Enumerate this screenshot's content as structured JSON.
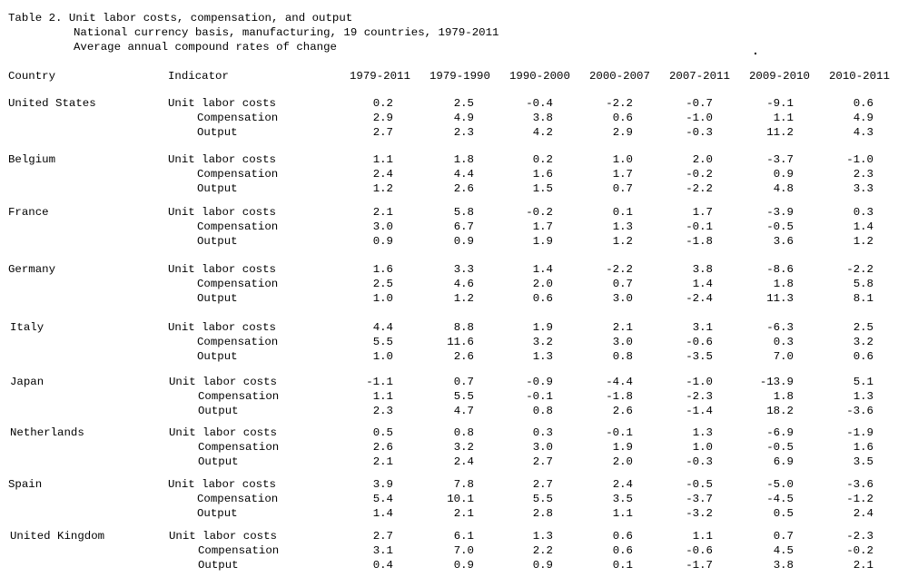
{
  "title": {
    "line1": "Table 2. Unit labor costs, compensation, and output",
    "line2": "National currency basis, manufacturing, 19 countries, 1979-2011",
    "line3": "Average annual compound rates of change"
  },
  "headers": {
    "country": "Country",
    "indicator": "Indicator",
    "periods": [
      "1979-2011",
      "1979-1990",
      "1990-2000",
      "2000-2007",
      "2007-2011",
      "2009-2010",
      "2010-2011"
    ]
  },
  "indicators": [
    "Unit labor costs",
    "Compensation",
    "Output"
  ],
  "rows": [
    {
      "country": "United States",
      "values": [
        [
          "0.2",
          "2.5",
          "-0.4",
          "-2.2",
          "-0.7",
          "-9.1",
          "0.6"
        ],
        [
          "2.9",
          "4.9",
          "3.8",
          "0.6",
          "-1.0",
          "1.1",
          "4.9"
        ],
        [
          "2.7",
          "2.3",
          "4.2",
          "2.9",
          "-0.3",
          "11.2",
          "4.3"
        ]
      ]
    },
    {
      "country": "Belgium",
      "values": [
        [
          "1.1",
          "1.8",
          "0.2",
          "1.0",
          "2.0",
          "-3.7",
          "-1.0"
        ],
        [
          "2.4",
          "4.4",
          "1.6",
          "1.7",
          "-0.2",
          "0.9",
          "2.3"
        ],
        [
          "1.2",
          "2.6",
          "1.5",
          "0.7",
          "-2.2",
          "4.8",
          "3.3"
        ]
      ]
    },
    {
      "country": "France",
      "values": [
        [
          "2.1",
          "5.8",
          "-0.2",
          "0.1",
          "1.7",
          "-3.9",
          "0.3"
        ],
        [
          "3.0",
          "6.7",
          "1.7",
          "1.3",
          "-0.1",
          "-0.5",
          "1.4"
        ],
        [
          "0.9",
          "0.9",
          "1.9",
          "1.2",
          "-1.8",
          "3.6",
          "1.2"
        ]
      ]
    },
    {
      "country": "Germany",
      "values": [
        [
          "1.6",
          "3.3",
          "1.4",
          "-2.2",
          "3.8",
          "-8.6",
          "-2.2"
        ],
        [
          "2.5",
          "4.6",
          "2.0",
          "0.7",
          "1.4",
          "1.8",
          "5.8"
        ],
        [
          "1.0",
          "1.2",
          "0.6",
          "3.0",
          "-2.4",
          "11.3",
          "8.1"
        ]
      ]
    },
    {
      "country": "Italy",
      "values": [
        [
          "4.4",
          "8.8",
          "1.9",
          "2.1",
          "3.1",
          "-6.3",
          "2.5"
        ],
        [
          "5.5",
          "11.6",
          "3.2",
          "3.0",
          "-0.6",
          "0.3",
          "3.2"
        ],
        [
          "1.0",
          "2.6",
          "1.3",
          "0.8",
          "-3.5",
          "7.0",
          "0.6"
        ]
      ]
    },
    {
      "country": "Japan",
      "values": [
        [
          "-1.1",
          "0.7",
          "-0.9",
          "-4.4",
          "-1.0",
          "-13.9",
          "5.1"
        ],
        [
          "1.1",
          "5.5",
          "-0.1",
          "-1.8",
          "-2.3",
          "1.8",
          "1.3"
        ],
        [
          "2.3",
          "4.7",
          "0.8",
          "2.6",
          "-1.4",
          "18.2",
          "-3.6"
        ]
      ]
    },
    {
      "country": "Netherlands",
      "values": [
        [
          "0.5",
          "0.8",
          "0.3",
          "-0.1",
          "1.3",
          "-6.9",
          "-1.9"
        ],
        [
          "2.6",
          "3.2",
          "3.0",
          "1.9",
          "1.0",
          "-0.5",
          "1.6"
        ],
        [
          "2.1",
          "2.4",
          "2.7",
          "2.0",
          "-0.3",
          "6.9",
          "3.5"
        ]
      ]
    },
    {
      "country": "Spain",
      "values": [
        [
          "3.9",
          "7.8",
          "2.7",
          "2.4",
          "-0.5",
          "-5.0",
          "-3.6"
        ],
        [
          "5.4",
          "10.1",
          "5.5",
          "3.5",
          "-3.7",
          "-4.5",
          "-1.2"
        ],
        [
          "1.4",
          "2.1",
          "2.8",
          "1.1",
          "-3.2",
          "0.5",
          "2.4"
        ]
      ]
    },
    {
      "country": "United Kingdom",
      "values": [
        [
          "2.7",
          "6.1",
          "1.3",
          "0.6",
          "1.1",
          "0.7",
          "-2.3"
        ],
        [
          "3.1",
          "7.0",
          "2.2",
          "0.6",
          "-0.6",
          "4.5",
          "-0.2"
        ],
        [
          "0.4",
          "0.9",
          "0.9",
          "0.1",
          "-1.7",
          "3.8",
          "2.1"
        ]
      ]
    }
  ]
}
